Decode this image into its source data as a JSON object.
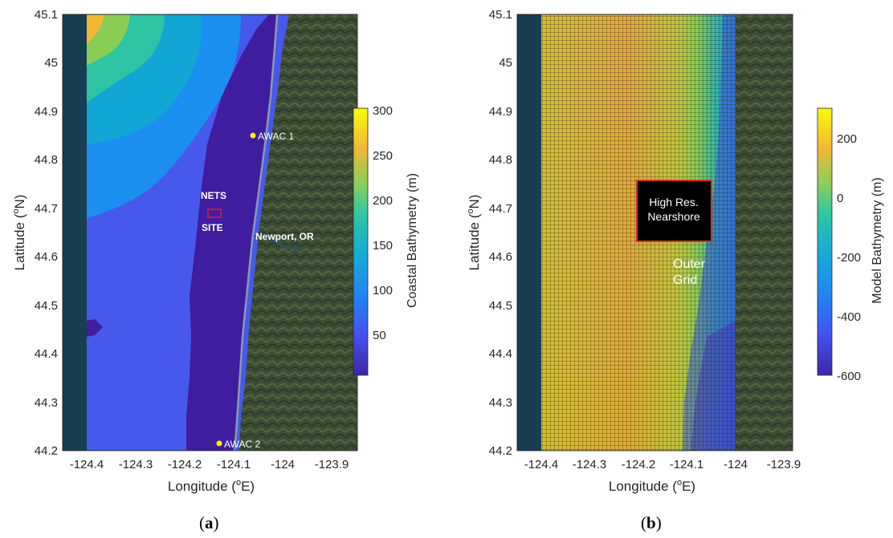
{
  "panel_a": {
    "ylabel_prefix": "Latitude (",
    "ylabel_sup": "o",
    "ylabel_suffix": "N)",
    "xlabel_prefix": "Longitude (",
    "xlabel_sup": "o",
    "xlabel_suffix": "E)",
    "x_ticks": [
      "-124.4",
      "-124.3",
      "-124.2",
      "-124.1",
      "-124",
      "-123.9"
    ],
    "y_ticks": [
      "45.1",
      "45",
      "44.9",
      "44.8",
      "44.7",
      "44.6",
      "44.5",
      "44.4",
      "44.3",
      "44.2"
    ],
    "colorbar_label": "Coastal Bathymetry (m)",
    "colorbar_ticks": [
      "300",
      "250",
      "200",
      "150",
      "100",
      "50"
    ],
    "labels": {
      "awac1": "AWAC 1",
      "awac2": "AWAC 2",
      "nets": "NETS",
      "site": "SITE",
      "newport": "Newport, OR"
    },
    "caption_open": "(",
    "caption_letter": "a",
    "caption_close": ")"
  },
  "panel_b": {
    "ylabel_prefix": "Latitude (",
    "ylabel_sup": "o",
    "ylabel_suffix": "N)",
    "xlabel_prefix": "Longitude (",
    "xlabel_sup": "o",
    "xlabel_suffix": "E)",
    "x_ticks": [
      "-124.4",
      "-124.3",
      "-124.2",
      "-124.1",
      "-124",
      "-123.9"
    ],
    "y_ticks": [
      "45.1",
      "45",
      "44.9",
      "44.8",
      "44.7",
      "44.6",
      "44.5",
      "44.4",
      "44.3",
      "44.2"
    ],
    "colorbar_label": "Model Bathymetry (m)",
    "colorbar_ticks": [
      "200",
      "0",
      "-200",
      "-400",
      "-600"
    ],
    "labels": {
      "box_line1": "High Res.",
      "box_line2": "Nearshore",
      "outer_line1": "Outer",
      "outer_line2": "Grid"
    },
    "caption_open": "(",
    "caption_letter": "b",
    "caption_close": ")"
  },
  "colors": {
    "land": "#3d4d35",
    "sea_edge": "#173e52",
    "nearshore": "#3f1d9e",
    "marker": "#fff200",
    "site_box": "#e0153a"
  }
}
